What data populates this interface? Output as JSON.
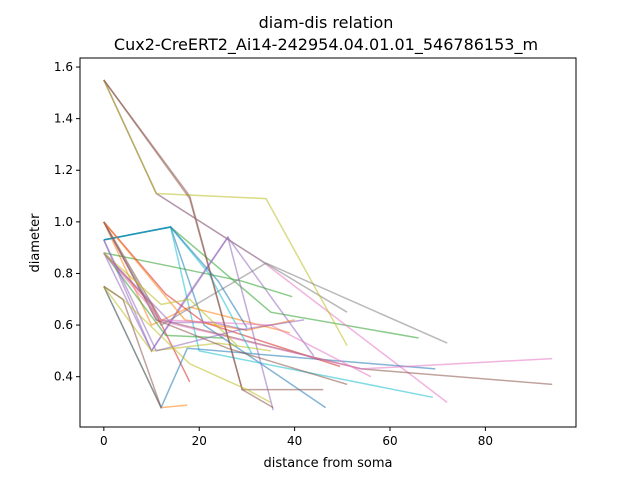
{
  "chart_data": {
    "type": "line",
    "title": "diam-dis relation",
    "subtitle": "Cux2-CreERT2_Ai14-242954.04.01.01_546786153_m",
    "xlabel": "distance from soma",
    "ylabel": "diameter",
    "xlim": [
      -5,
      99
    ],
    "ylim": [
      0.205,
      1.635
    ],
    "xticks": [
      0,
      20,
      40,
      60,
      80
    ],
    "xtick_labels": [
      "0",
      "20",
      "40",
      "60",
      "80"
    ],
    "yticks": [
      0.4,
      0.6,
      0.8,
      1.0,
      1.2,
      1.4,
      1.6
    ],
    "ytick_labels": [
      "0.4",
      "0.6",
      "0.8",
      "1.0",
      "1.2",
      "1.4",
      "1.6"
    ],
    "grid": false,
    "legend": "none",
    "series": [
      {
        "color": "#1f77b4",
        "x": [
          0,
          14,
          21,
          46.5
        ],
        "y": [
          0.93,
          0.98,
          0.6,
          0.28
        ]
      },
      {
        "color": "#ff7f0e",
        "x": [
          0,
          12,
          17.5
        ],
        "y": [
          0.75,
          0.28,
          0.29
        ]
      },
      {
        "color": "#2ca02c",
        "x": [
          0,
          14,
          35,
          66
        ],
        "y": [
          0.93,
          0.98,
          0.65,
          0.55
        ]
      },
      {
        "color": "#d62728",
        "x": [
          0,
          10,
          18
        ],
        "y": [
          0.88,
          0.68,
          0.38
        ]
      },
      {
        "color": "#9467bd",
        "x": [
          0,
          10,
          26,
          44
        ],
        "y": [
          0.93,
          0.5,
          0.94,
          0.48
        ]
      },
      {
        "color": "#8c564b",
        "x": [
          0,
          18,
          29,
          46
        ],
        "y": [
          1.55,
          1.1,
          0.35,
          0.35
        ]
      },
      {
        "color": "#e377c2",
        "x": [
          0,
          11,
          33,
          72
        ],
        "y": [
          1.55,
          1.11,
          0.85,
          0.3
        ]
      },
      {
        "color": "#7f7f7f",
        "x": [
          0,
          11,
          33,
          51
        ],
        "y": [
          1.55,
          1.11,
          0.85,
          0.65
        ]
      },
      {
        "color": "#bcbd22",
        "x": [
          0,
          11,
          34,
          51
        ],
        "y": [
          1.55,
          1.11,
          1.09,
          0.52
        ]
      },
      {
        "color": "#17becf",
        "x": [
          0,
          14,
          20,
          69
        ],
        "y": [
          0.93,
          0.98,
          0.5,
          0.32
        ]
      },
      {
        "color": "#1f77b4",
        "x": [
          0,
          12,
          17.5,
          69.5
        ],
        "y": [
          0.75,
          0.28,
          0.51,
          0.43
        ]
      },
      {
        "color": "#ff7f0e",
        "x": [
          0,
          10,
          18,
          39
        ],
        "y": [
          1.0,
          0.6,
          0.67,
          0.57
        ]
      },
      {
        "color": "#2ca02c",
        "x": [
          0,
          16,
          29,
          39.5
        ],
        "y": [
          0.88,
          0.82,
          0.77,
          0.71
        ]
      },
      {
        "color": "#d62728",
        "x": [
          0,
          13,
          21,
          49.5
        ],
        "y": [
          1.0,
          0.72,
          0.61,
          0.44
        ]
      },
      {
        "color": "#9467bd",
        "x": [
          0,
          10,
          17,
          26,
          35.5
        ],
        "y": [
          0.88,
          0.5,
          0.7,
          0.94,
          0.27
        ]
      },
      {
        "color": "#8c564b",
        "x": [
          0,
          12,
          54,
          94
        ],
        "y": [
          1.0,
          0.62,
          0.43,
          0.37
        ]
      },
      {
        "color": "#e377c2",
        "x": [
          0,
          11,
          54,
          94
        ],
        "y": [
          1.0,
          0.62,
          0.43,
          0.47
        ]
      },
      {
        "color": "#7f7f7f",
        "x": [
          0,
          12,
          34,
          72
        ],
        "y": [
          1.0,
          0.6,
          0.84,
          0.53
        ]
      },
      {
        "color": "#bcbd22",
        "x": [
          0,
          10,
          24,
          35
        ],
        "y": [
          0.75,
          0.5,
          0.53,
          0.5
        ]
      },
      {
        "color": "#17becf",
        "x": [
          0,
          14,
          22,
          31
        ],
        "y": [
          0.93,
          0.98,
          0.8,
          0.49
        ]
      },
      {
        "color": "#1f77b4",
        "x": [
          0,
          14,
          24,
          30
        ],
        "y": [
          0.93,
          0.98,
          0.77,
          0.59
        ]
      },
      {
        "color": "#ff7f0e",
        "x": [
          0,
          17,
          30,
          40
        ],
        "y": [
          1.0,
          0.62,
          0.58,
          0.62
        ]
      },
      {
        "color": "#2ca02c",
        "x": [
          0,
          13,
          25
        ],
        "y": [
          0.88,
          0.56,
          0.55
        ]
      },
      {
        "color": "#9467bd",
        "x": [
          0,
          14,
          23,
          30
        ],
        "y": [
          0.88,
          0.61,
          0.61,
          0.58
        ]
      },
      {
        "color": "#8c564b",
        "x": [
          0,
          11,
          26,
          51
        ],
        "y": [
          1.0,
          0.62,
          0.51,
          0.37
        ]
      },
      {
        "color": "#e377c2",
        "x": [
          0,
          12,
          35,
          56
        ],
        "y": [
          0.88,
          0.62,
          0.6,
          0.4
        ]
      },
      {
        "color": "#bcbd22",
        "x": [
          0,
          12,
          18,
          28
        ],
        "y": [
          0.88,
          0.68,
          0.7,
          0.52
        ]
      },
      {
        "color": "#8c564b",
        "x": [
          0,
          18,
          29,
          35.5
        ],
        "y": [
          1.55,
          1.09,
          0.35,
          0.28
        ]
      },
      {
        "color": "#9467bd",
        "x": [
          0,
          11,
          28,
          42
        ],
        "y": [
          0.93,
          0.5,
          0.58,
          0.62
        ]
      },
      {
        "color": "#bcbd22",
        "x": [
          0,
          4,
          18,
          30,
          35
        ],
        "y": [
          0.75,
          0.7,
          0.45,
          0.35,
          0.3
        ]
      },
      {
        "color": "#8c564b",
        "x": [
          0,
          4,
          12
        ],
        "y": [
          0.75,
          0.7,
          0.28
        ]
      }
    ]
  }
}
